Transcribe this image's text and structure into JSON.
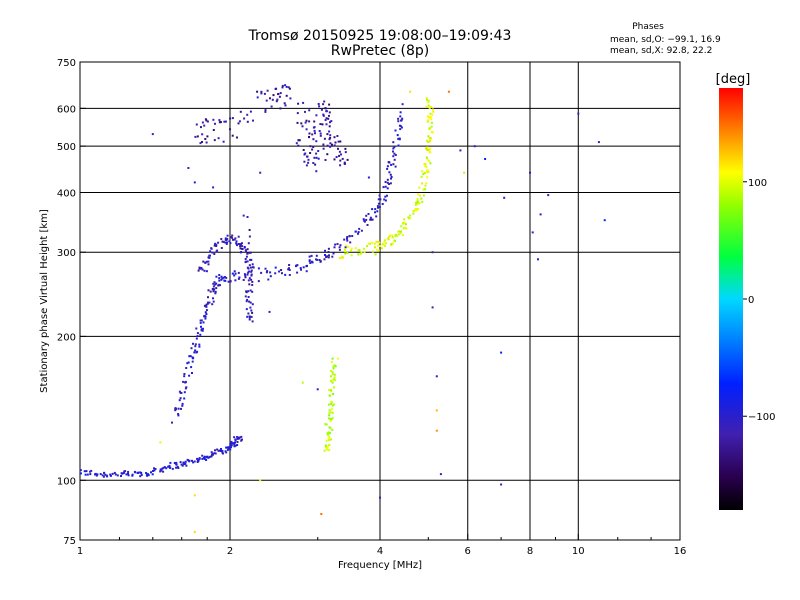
{
  "title": "Tromsø 20150925 19:08:00–19:09:43",
  "subtitle": "RwPretec (8p)",
  "stats": {
    "header": "Phases",
    "line1": "mean, sd,O: −99.1, 16.9",
    "line2": "mean, sd,X:  92.8, 22.2"
  },
  "colorbar": {
    "label": "[deg]",
    "range": [
      -180,
      180
    ],
    "ticks": [
      {
        "value": 100,
        "label": "100"
      },
      {
        "value": 0,
        "label": "0"
      },
      {
        "value": -100,
        "label": "−100"
      }
    ]
  },
  "chart_data": {
    "type": "scatter",
    "title": "Tromsø 20150925 19:08:00–19:09:43",
    "subtitle": "RwPretec (8p)",
    "xlabel": "Frequency [MHz]",
    "ylabel": "Stationary phase Virtual Height [km]",
    "xscale": "log2",
    "yscale": "log",
    "xlim": [
      1,
      16
    ],
    "ylim": [
      75,
      750
    ],
    "xticks": [
      {
        "value": 1,
        "label": "1"
      },
      {
        "value": 2,
        "label": "2"
      },
      {
        "value": 4,
        "label": "4"
      },
      {
        "value": 6,
        "label": "6"
      },
      {
        "value": 8,
        "label": "8"
      },
      {
        "value": 10,
        "label": "10"
      },
      {
        "value": 16,
        "label": "16"
      }
    ],
    "xgrid": [
      2,
      4,
      6,
      8,
      10
    ],
    "yticks": [
      75,
      100,
      200,
      300,
      400,
      500,
      600,
      750
    ],
    "ygrid": [
      100,
      200,
      300,
      400,
      500,
      600
    ],
    "color_variable": "Phase [deg]",
    "traces": [
      {
        "name": "E-layer O trace",
        "phase": -100,
        "spread": 3,
        "points": [
          [
            1.0,
            104
          ],
          [
            1.1,
            103
          ],
          [
            1.2,
            103
          ],
          [
            1.3,
            103
          ],
          [
            1.4,
            104
          ],
          [
            1.5,
            107
          ],
          [
            1.6,
            108
          ],
          [
            1.7,
            110
          ],
          [
            1.8,
            112
          ],
          [
            1.9,
            115
          ],
          [
            2.0,
            117
          ],
          [
            2.05,
            120
          ],
          [
            2.1,
            124
          ]
        ]
      },
      {
        "name": "Lower F O trace",
        "phase": -105,
        "spread": 6,
        "points": [
          [
            1.55,
            135
          ],
          [
            1.6,
            150
          ],
          [
            1.65,
            170
          ],
          [
            1.7,
            190
          ],
          [
            1.75,
            210
          ],
          [
            1.8,
            230
          ],
          [
            1.85,
            250
          ],
          [
            1.9,
            262
          ],
          [
            2.0,
            266
          ],
          [
            2.2,
            268
          ],
          [
            2.5,
            272
          ],
          [
            2.8,
            280
          ],
          [
            3.0,
            290
          ],
          [
            3.2,
            300
          ],
          [
            3.5,
            320
          ],
          [
            3.8,
            350
          ],
          [
            4.0,
            380
          ],
          [
            4.15,
            420
          ],
          [
            4.25,
            470
          ],
          [
            4.35,
            530
          ],
          [
            4.45,
            600
          ]
        ]
      },
      {
        "name": "F trace O phase detached",
        "phase": -110,
        "spread": 5,
        "points": [
          [
            1.75,
            270
          ],
          [
            1.8,
            290
          ],
          [
            1.9,
            310
          ],
          [
            2.0,
            320
          ],
          [
            2.1,
            315
          ],
          [
            2.15,
            300
          ],
          [
            2.2,
            280
          ],
          [
            2.18,
            240
          ],
          [
            2.2,
            215
          ],
          [
            2.15,
            380
          ]
        ]
      },
      {
        "name": "F trace X (yellow-orange)",
        "phase": 100,
        "spread": 6,
        "points": [
          [
            3.3,
            300
          ],
          [
            3.6,
            302
          ],
          [
            3.9,
            306
          ],
          [
            4.1,
            315
          ],
          [
            4.3,
            325
          ],
          [
            4.5,
            340
          ],
          [
            4.7,
            370
          ],
          [
            4.85,
            400
          ],
          [
            4.95,
            440
          ],
          [
            5.0,
            480
          ],
          [
            5.05,
            530
          ],
          [
            5.05,
            580
          ],
          [
            5.0,
            620
          ]
        ]
      },
      {
        "name": "Upper spread F O",
        "phase": -120,
        "spread": 12,
        "points": [
          [
            2.7,
            520
          ],
          [
            2.9,
            560
          ],
          [
            3.1,
            600
          ],
          [
            3.2,
            540
          ],
          [
            2.8,
            480
          ],
          [
            3.0,
            470
          ],
          [
            3.3,
            500
          ],
          [
            3.4,
            460
          ],
          [
            2.6,
            640
          ],
          [
            2.5,
            630
          ],
          [
            2.3,
            625
          ],
          [
            2.0,
            535
          ],
          [
            1.8,
            540
          ],
          [
            1.7,
            520
          ]
        ]
      },
      {
        "name": "Mid X spur",
        "phase": 90,
        "spread": 4,
        "points": [
          [
            3.15,
            115
          ],
          [
            3.15,
            125
          ],
          [
            3.2,
            140
          ],
          [
            3.2,
            160
          ],
          [
            3.25,
            180
          ],
          [
            3.1,
            110
          ]
        ]
      }
    ],
    "noise_points": [
      [
        1.4,
        530,
        -110
      ],
      [
        1.65,
        450,
        -100
      ],
      [
        1.7,
        420,
        -90
      ],
      [
        1.85,
        410,
        -100
      ],
      [
        2.3,
        440,
        -110
      ],
      [
        5.8,
        490,
        -100
      ],
      [
        6.5,
        470,
        -80
      ],
      [
        7.1,
        390,
        -100
      ],
      [
        8.0,
        440,
        -100
      ],
      [
        8.1,
        330,
        -100
      ],
      [
        8.3,
        290,
        -90
      ],
      [
        8.4,
        360,
        -100
      ],
      [
        8.7,
        395,
        -100
      ],
      [
        10.0,
        585,
        -110
      ],
      [
        11.0,
        510,
        -110
      ],
      [
        11.3,
        350,
        -80
      ],
      [
        5.1,
        300,
        -110
      ],
      [
        5.1,
        230,
        -110
      ],
      [
        7.0,
        185,
        -80
      ],
      [
        5.2,
        165,
        -110
      ],
      [
        5.2,
        140,
        130
      ],
      [
        5.2,
        127,
        140
      ],
      [
        4.0,
        92,
        -110
      ],
      [
        5.3,
        103,
        -110
      ],
      [
        7.0,
        98,
        -110
      ],
      [
        2.8,
        160,
        90
      ],
      [
        3.0,
        155,
        -100
      ],
      [
        1.7,
        93,
        120
      ],
      [
        1.7,
        78,
        120
      ],
      [
        3.05,
        85,
        150
      ],
      [
        1.45,
        120,
        100
      ],
      [
        2.4,
        225,
        -110
      ],
      [
        2.3,
        100,
        100
      ],
      [
        5.5,
        650,
        150
      ],
      [
        4.6,
        650,
        120
      ],
      [
        5.9,
        440,
        90
      ],
      [
        6.2,
        500,
        -100
      ],
      [
        3.8,
        430,
        -100
      ]
    ]
  }
}
